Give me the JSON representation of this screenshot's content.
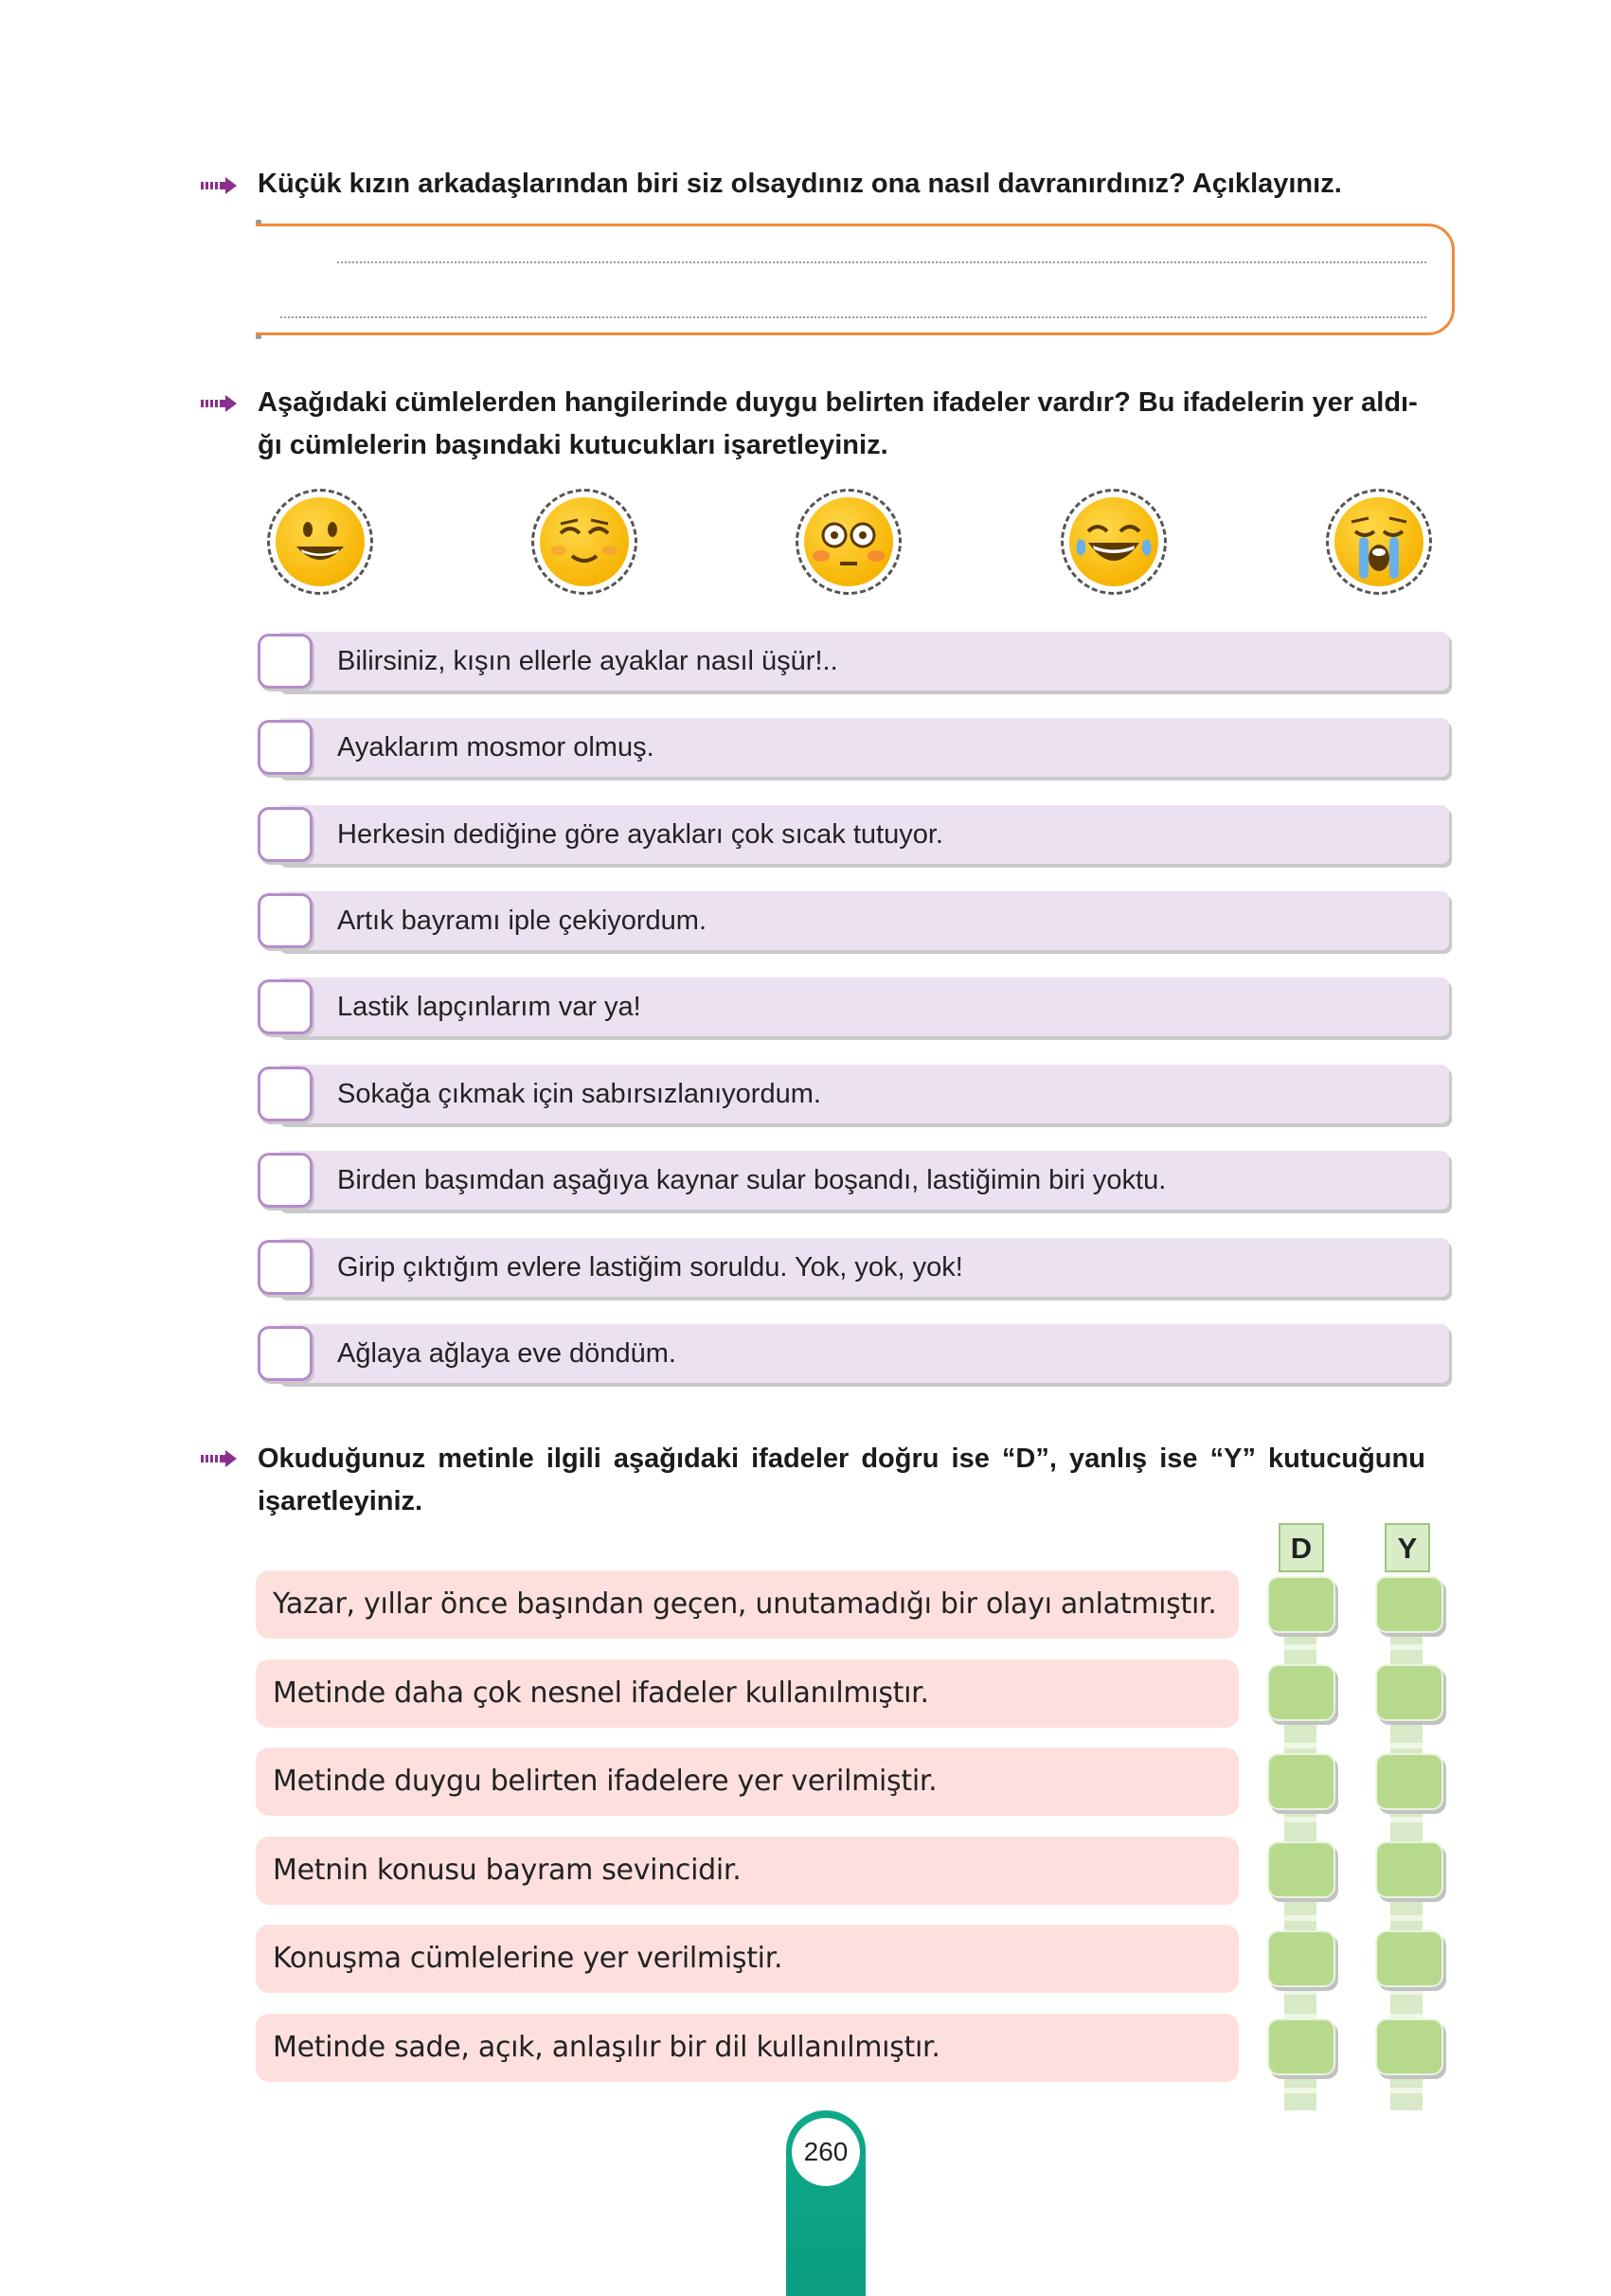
{
  "question1": {
    "text": "Küçük kızın arkadaşlarından biri siz olsaydınız ona nasıl davranırdınız? Açıklayınız."
  },
  "question2": {
    "line1": "Aşağıdaki cümlelerden hangilerinde duygu belirten ifadeler vardır? Bu ifadelerin yer aldı-",
    "line2": "ğı cümlelerin başındaki kutucukları işaretleyiniz."
  },
  "emojis": [
    "grinning-face-icon",
    "blushing-smiling-face-icon",
    "flushed-face-icon",
    "tears-of-joy-face-icon",
    "crying-face-icon"
  ],
  "sentences": [
    "Bilirsiniz, kışın ellerle ayaklar nasıl üşür!..",
    "Ayaklarım mosmor olmuş.",
    "Herkesin dediğine göre ayakları çok sıcak tutuyor.",
    "Artık bayramı iple çekiyordum.",
    "Lastik lapçınlarım var ya!",
    "Sokağa çıkmak için sabırsızlanıyordum.",
    "Birden başımdan aşağıya kaynar sular boşandı, lastiğimin biri yoktu.",
    "Girip çıktığım evlere lastiğim soruldu. Yok, yok, yok!",
    "Ağlaya ağlaya eve döndüm."
  ],
  "question3": {
    "line1": "Okuduğunuz metinle ilgili aşağıdaki ifadeler doğru ise “D”, yanlış ise “Y” kutucuğunu",
    "line2": "işaretleyiniz."
  },
  "columns": {
    "d": "D",
    "y": "Y"
  },
  "statements": [
    "Yazar, yıllar önce başından geçen, unutamadığı bir olayı anlatmıştır.",
    "Metinde daha çok nesnel ifadeler kullanılmıştır.",
    "Metinde duygu belirten ifadelere yer verilmiştir.",
    "Metnin konusu bayram sevincidir.",
    "Konuşma cümlelerine yer verilmiştir.",
    "Metinde sade, açık, anlaşılır bir dil kullanılmıştır."
  ],
  "page_number": "260",
  "colors": {
    "purple_arrow": "#8b2f8f",
    "orange_border": "#ef8a3c",
    "row_purple": "#ebe1f1",
    "pink_row": "#fde0de",
    "green_box": "#b6d98c",
    "teal_tab": "#0fa98a"
  }
}
